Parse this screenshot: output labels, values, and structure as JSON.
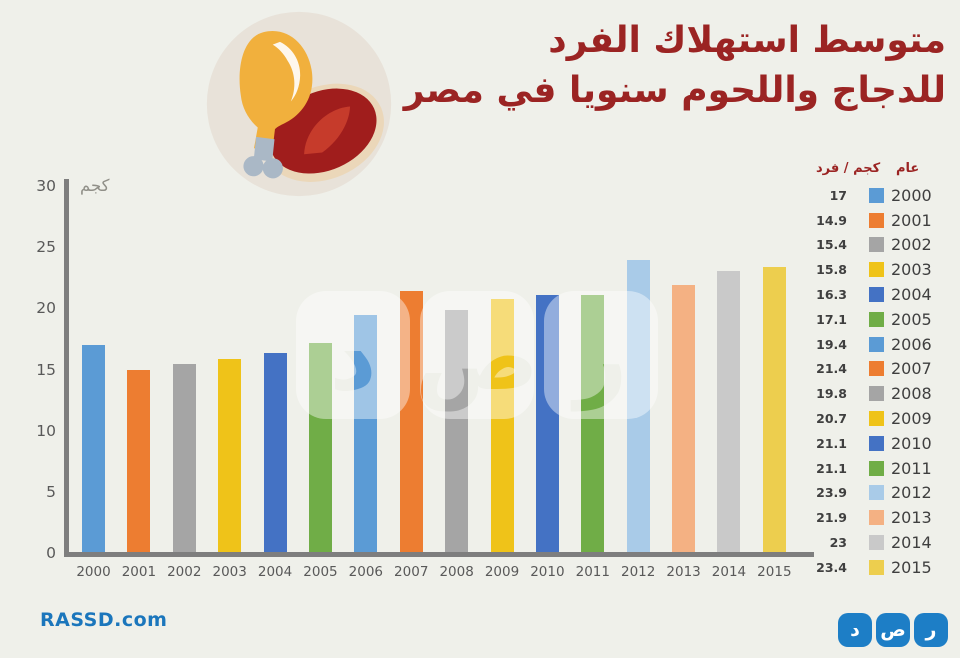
{
  "title": {
    "line1": "متوسط استهلاك الفرد",
    "line2": "للدجاج واللحوم سنويا في مصر",
    "color": "#9B2423"
  },
  "chart_data": {
    "type": "bar",
    "title": "متوسط استهلاك الفرد للدجاج واللحوم سنويا في مصر",
    "categories": [
      "2000",
      "2001",
      "2002",
      "2003",
      "2004",
      "2005",
      "2006",
      "2007",
      "2008",
      "2009",
      "2010",
      "2011",
      "2012",
      "2013",
      "2014",
      "2015"
    ],
    "values": [
      17,
      14.9,
      15.4,
      15.8,
      16.3,
      17.1,
      19.4,
      21.4,
      19.8,
      20.7,
      21.1,
      21.1,
      23.9,
      21.9,
      23,
      23.4
    ],
    "display_values": [
      "17",
      "14.9",
      "15.4",
      "15.8",
      "16.3",
      "17.1",
      "19.4",
      "21.4",
      "19.8",
      "20.7",
      "21.1",
      "21.1",
      "23.9",
      "21.9",
      "23",
      "23.4"
    ],
    "colors": [
      "#5B9BD5",
      "#ED7D31",
      "#A5A5A5",
      "#EFC319",
      "#4472C4",
      "#70AD47",
      "#5B9BD5",
      "#ED7D31",
      "#A5A5A5",
      "#EFC319",
      "#4472C4",
      "#70AD47",
      "#A9CBE8",
      "#F4B183",
      "#C9C9C9",
      "#EDCE4E"
    ],
    "xlabel": "",
    "ylabel": "كجم",
    "ylim": [
      0,
      30
    ],
    "yticks": [
      "30",
      "25",
      "20",
      "15",
      "10",
      "5",
      "0"
    ],
    "grid": false,
    "legend_position": "right"
  },
  "legend": {
    "year_header": "عام",
    "unit_header": "كجم / فرد"
  },
  "footer": {
    "wordmark": "RASSD.com"
  },
  "logo": {
    "letters": [
      "د",
      "ص",
      "ر"
    ],
    "color": "#1D7EC6"
  },
  "icons": {
    "illustration": "chicken-drumstick-and-steak-icon",
    "watermark": "rassd-logo-watermark"
  }
}
